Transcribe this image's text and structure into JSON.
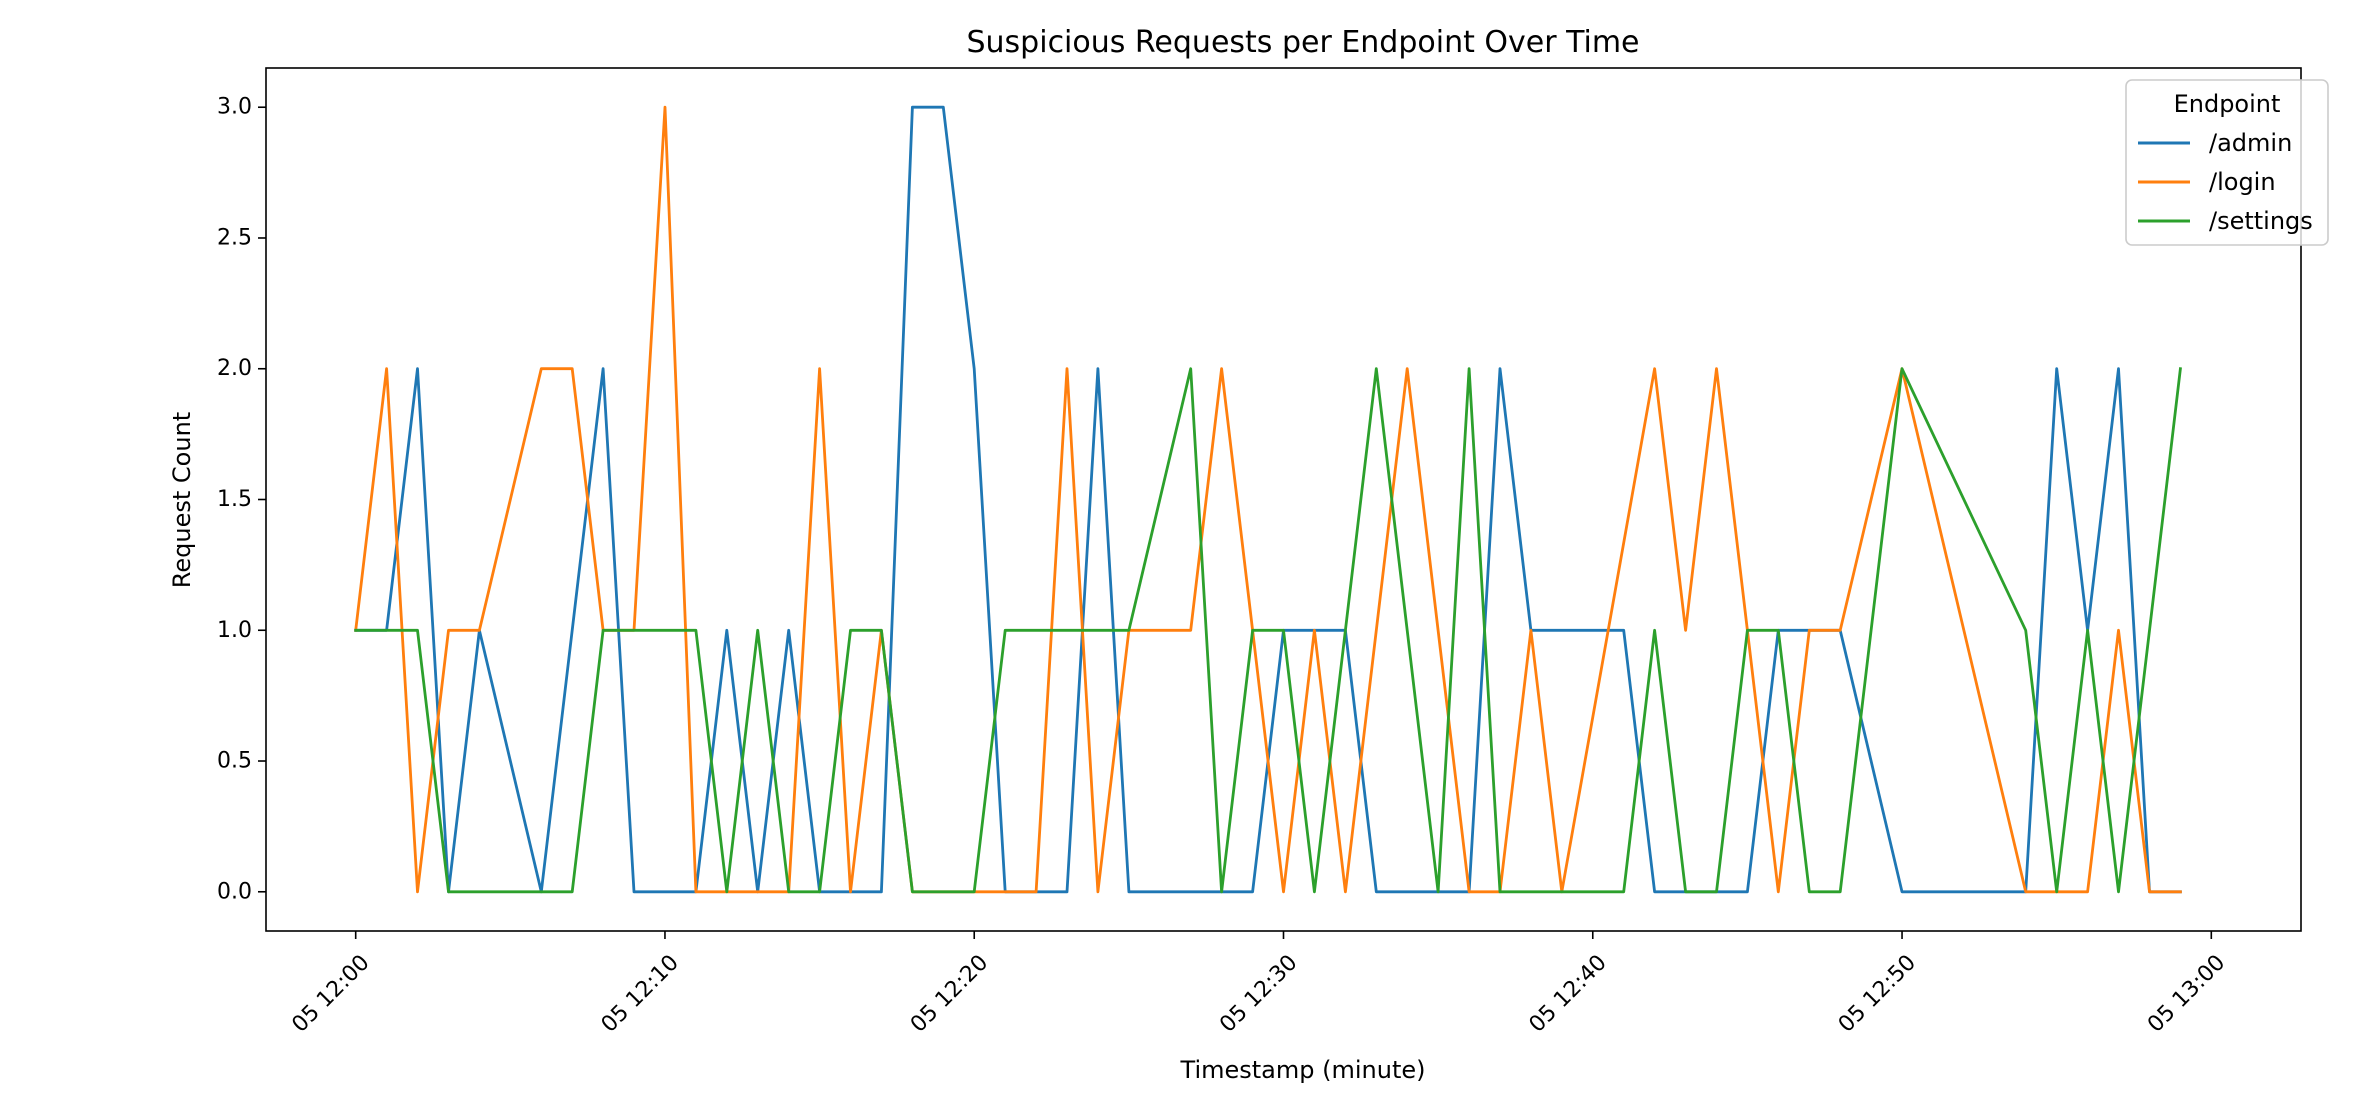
{
  "chart_data": {
    "type": "line",
    "title": "Suspicious Requests per Endpoint Over Time",
    "xlabel": "Timestamp (minute)",
    "ylabel": "Request Count",
    "x_start": "12:00",
    "x_minutes": [
      0,
      1,
      2,
      3,
      4,
      5,
      6,
      7,
      8,
      9,
      10,
      11,
      12,
      13,
      14,
      15,
      16,
      17,
      18,
      19,
      20,
      21,
      22,
      23,
      24,
      25,
      26,
      27,
      28,
      29,
      30,
      31,
      32,
      33,
      34,
      35,
      36,
      37,
      38,
      39,
      40,
      41,
      42,
      43,
      44,
      45,
      46,
      47,
      48,
      49,
      50,
      51,
      52,
      53,
      54,
      55,
      56,
      57,
      58,
      59
    ],
    "x_ticks": [
      {
        "minute": 0,
        "label": "05 12:00"
      },
      {
        "minute": 10,
        "label": "05 12:10"
      },
      {
        "minute": 20,
        "label": "05 12:20"
      },
      {
        "minute": 30,
        "label": "05 12:30"
      },
      {
        "minute": 40,
        "label": "05 12:40"
      },
      {
        "minute": 50,
        "label": "05 12:50"
      },
      {
        "minute": 60,
        "label": "05 13:00"
      }
    ],
    "xlim": [
      -2.9,
      62.9
    ],
    "ylim": [
      -0.15,
      3.15
    ],
    "y_ticks": [
      {
        "value": 0.0,
        "label": "0.0"
      },
      {
        "value": 0.5,
        "label": "0.5"
      },
      {
        "value": 1.0,
        "label": "1.0"
      },
      {
        "value": 1.5,
        "label": "1.5"
      },
      {
        "value": 2.0,
        "label": "2.0"
      },
      {
        "value": 2.5,
        "label": "2.5"
      },
      {
        "value": 3.0,
        "label": "3.0"
      }
    ],
    "grid": false,
    "legend": {
      "title": "Endpoint",
      "placement": "top-right"
    },
    "series": [
      {
        "name": "/admin",
        "color": "#1f77b4",
        "values": [
          1,
          1,
          2,
          0,
          1,
          null,
          0,
          1,
          2,
          0,
          0,
          0,
          1,
          0,
          1,
          0,
          0,
          0,
          3,
          3,
          2,
          0,
          0,
          0,
          2,
          0,
          0,
          0,
          0,
          0,
          1,
          1,
          1,
          0,
          0,
          0,
          0,
          2,
          1,
          1,
          1,
          1,
          0,
          0,
          0,
          0,
          1,
          1,
          1,
          null,
          0,
          null,
          null,
          null,
          0,
          2,
          1,
          2,
          0,
          0
        ]
      },
      {
        "name": "/login",
        "color": "#ff7f0e",
        "values": [
          1,
          2,
          0,
          1,
          1,
          null,
          2,
          2,
          1,
          1,
          3,
          0,
          0,
          0,
          0,
          2,
          0,
          1,
          0,
          0,
          0,
          0,
          0,
          2,
          0,
          1,
          1,
          1,
          2,
          1,
          0,
          1,
          0,
          1,
          2,
          1,
          0,
          0,
          1,
          0,
          null,
          null,
          2,
          1,
          2,
          1,
          0,
          1,
          1,
          null,
          2,
          null,
          null,
          null,
          0,
          0,
          0,
          1,
          0,
          0
        ]
      },
      {
        "name": "/settings",
        "color": "#2ca02c",
        "values": [
          1,
          1,
          1,
          0,
          0,
          null,
          0,
          0,
          1,
          1,
          1,
          1,
          0,
          1,
          0,
          0,
          1,
          1,
          0,
          0,
          0,
          1,
          1,
          1,
          1,
          1,
          null,
          2,
          0,
          1,
          1,
          0,
          1,
          2,
          1,
          0,
          2,
          0,
          0,
          0,
          0,
          0,
          1,
          0,
          0,
          1,
          1,
          0,
          0,
          1,
          2,
          null,
          null,
          null,
          1,
          0,
          1,
          0,
          1,
          2
        ]
      }
    ]
  }
}
